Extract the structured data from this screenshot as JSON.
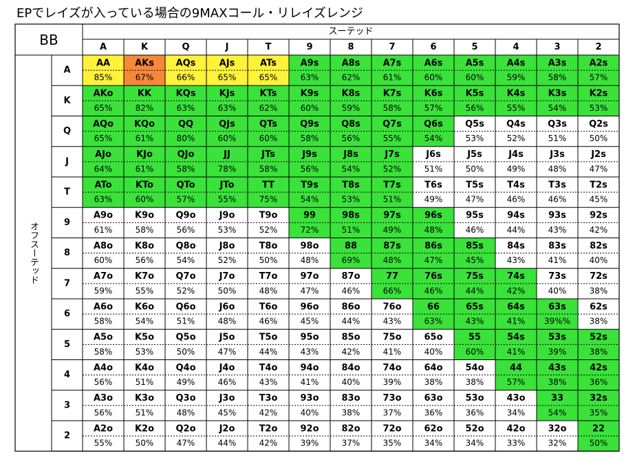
{
  "title": "EPでレイズが入っている場合の9MAXコール・リレイズレンジ",
  "corner_label": "BB",
  "column_group_label": "スーテッド",
  "row_group_label": "オフスーテッド",
  "columns": [
    "A",
    "K",
    "Q",
    "J",
    "T",
    "9",
    "8",
    "7",
    "6",
    "5",
    "4",
    "3",
    "2"
  ],
  "rows": [
    {
      "label": "A",
      "cells": [
        {
          "hand": "AA",
          "pct": "85%",
          "color": "#fff23a"
        },
        {
          "hand": "AKs",
          "pct": "67%",
          "color": "#f5883a"
        },
        {
          "hand": "AQs",
          "pct": "66%",
          "color": "#fff23a"
        },
        {
          "hand": "AJs",
          "pct": "65%",
          "color": "#fff23a"
        },
        {
          "hand": "ATs",
          "pct": "65%",
          "color": "#fff23a"
        },
        {
          "hand": "A9s",
          "pct": "63%",
          "color": "#3ae23a"
        },
        {
          "hand": "A8s",
          "pct": "62%",
          "color": "#3ae23a"
        },
        {
          "hand": "A7s",
          "pct": "61%",
          "color": "#3ae23a"
        },
        {
          "hand": "A6s",
          "pct": "60%",
          "color": "#3ae23a"
        },
        {
          "hand": "A5s",
          "pct": "60%",
          "color": "#3ae23a"
        },
        {
          "hand": "A4s",
          "pct": "59%",
          "color": "#3ae23a"
        },
        {
          "hand": "A3s",
          "pct": "58%",
          "color": "#3ae23a"
        },
        {
          "hand": "A2s",
          "pct": "57%",
          "color": "#3ae23a"
        }
      ]
    },
    {
      "label": "K",
      "cells": [
        {
          "hand": "AKo",
          "pct": "65%",
          "color": "#3ae23a"
        },
        {
          "hand": "KK",
          "pct": "82%",
          "color": "#3ae23a"
        },
        {
          "hand": "KQs",
          "pct": "63%",
          "color": "#3ae23a"
        },
        {
          "hand": "KJs",
          "pct": "63%",
          "color": "#3ae23a"
        },
        {
          "hand": "KTs",
          "pct": "62%",
          "color": "#3ae23a"
        },
        {
          "hand": "K9s",
          "pct": "60%",
          "color": "#3ae23a"
        },
        {
          "hand": "K8s",
          "pct": "59%",
          "color": "#3ae23a"
        },
        {
          "hand": "K7s",
          "pct": "58%",
          "color": "#3ae23a"
        },
        {
          "hand": "K6s",
          "pct": "57%",
          "color": "#3ae23a"
        },
        {
          "hand": "K5s",
          "pct": "56%",
          "color": "#3ae23a"
        },
        {
          "hand": "K4s",
          "pct": "55%",
          "color": "#3ae23a"
        },
        {
          "hand": "K3s",
          "pct": "54%",
          "color": "#3ae23a"
        },
        {
          "hand": "K2s",
          "pct": "53%",
          "color": "#3ae23a"
        }
      ]
    },
    {
      "label": "Q",
      "cells": [
        {
          "hand": "AQo",
          "pct": "65%",
          "color": "#3ae23a"
        },
        {
          "hand": "KQo",
          "pct": "61%",
          "color": "#3ae23a"
        },
        {
          "hand": "QQ",
          "pct": "80%",
          "color": "#3ae23a"
        },
        {
          "hand": "QJs",
          "pct": "60%",
          "color": "#3ae23a"
        },
        {
          "hand": "QTs",
          "pct": "60%",
          "color": "#3ae23a"
        },
        {
          "hand": "Q9s",
          "pct": "58%",
          "color": "#3ae23a"
        },
        {
          "hand": "Q8s",
          "pct": "56%",
          "color": "#3ae23a"
        },
        {
          "hand": "Q7s",
          "pct": "55%",
          "color": "#3ae23a"
        },
        {
          "hand": "Q6s",
          "pct": "54%",
          "color": "#3ae23a"
        },
        {
          "hand": "Q5s",
          "pct": "53%",
          "color": "#ffffff"
        },
        {
          "hand": "Q4s",
          "pct": "52%",
          "color": "#ffffff"
        },
        {
          "hand": "Q3s",
          "pct": "51%",
          "color": "#ffffff"
        },
        {
          "hand": "Q2s",
          "pct": "50%",
          "color": "#ffffff"
        }
      ]
    },
    {
      "label": "J",
      "cells": [
        {
          "hand": "AJo",
          "pct": "64%",
          "color": "#3ae23a"
        },
        {
          "hand": "KJo",
          "pct": "61%",
          "color": "#3ae23a"
        },
        {
          "hand": "QJo",
          "pct": "58%",
          "color": "#3ae23a"
        },
        {
          "hand": "JJ",
          "pct": "78%",
          "color": "#3ae23a"
        },
        {
          "hand": "JTs",
          "pct": "58%",
          "color": "#3ae23a"
        },
        {
          "hand": "J9s",
          "pct": "56%",
          "color": "#3ae23a"
        },
        {
          "hand": "J8s",
          "pct": "54%",
          "color": "#3ae23a"
        },
        {
          "hand": "J7s",
          "pct": "52%",
          "color": "#3ae23a"
        },
        {
          "hand": "J6s",
          "pct": "51%",
          "color": "#ffffff"
        },
        {
          "hand": "J5s",
          "pct": "50%",
          "color": "#ffffff"
        },
        {
          "hand": "J4s",
          "pct": "49%",
          "color": "#ffffff"
        },
        {
          "hand": "J3s",
          "pct": "48%",
          "color": "#ffffff"
        },
        {
          "hand": "J2s",
          "pct": "47%",
          "color": "#ffffff"
        }
      ]
    },
    {
      "label": "T",
      "cells": [
        {
          "hand": "ATo",
          "pct": "63%",
          "color": "#3ae23a"
        },
        {
          "hand": "KTo",
          "pct": "60%",
          "color": "#3ae23a"
        },
        {
          "hand": "QTo",
          "pct": "57%",
          "color": "#3ae23a"
        },
        {
          "hand": "JTo",
          "pct": "55%",
          "color": "#3ae23a"
        },
        {
          "hand": "TT",
          "pct": "75%",
          "color": "#3ae23a"
        },
        {
          "hand": "T9s",
          "pct": "54%",
          "color": "#3ae23a"
        },
        {
          "hand": "T8s",
          "pct": "53%",
          "color": "#3ae23a"
        },
        {
          "hand": "T7s",
          "pct": "51%",
          "color": "#3ae23a"
        },
        {
          "hand": "T6s",
          "pct": "49%",
          "color": "#ffffff"
        },
        {
          "hand": "T5s",
          "pct": "47%",
          "color": "#ffffff"
        },
        {
          "hand": "T4s",
          "pct": "46%",
          "color": "#ffffff"
        },
        {
          "hand": "T3s",
          "pct": "46%",
          "color": "#ffffff"
        },
        {
          "hand": "T2s",
          "pct": "45%",
          "color": "#ffffff"
        }
      ]
    },
    {
      "label": "9",
      "cells": [
        {
          "hand": "A9o",
          "pct": "61%",
          "color": "#ffffff"
        },
        {
          "hand": "K9o",
          "pct": "58%",
          "color": "#ffffff"
        },
        {
          "hand": "Q9o",
          "pct": "56%",
          "color": "#ffffff"
        },
        {
          "hand": "J9o",
          "pct": "53%",
          "color": "#ffffff"
        },
        {
          "hand": "T9o",
          "pct": "52%",
          "color": "#ffffff"
        },
        {
          "hand": "99",
          "pct": "72%",
          "color": "#3ae23a"
        },
        {
          "hand": "98s",
          "pct": "51%",
          "color": "#3ae23a"
        },
        {
          "hand": "97s",
          "pct": "49%",
          "color": "#3ae23a"
        },
        {
          "hand": "96s",
          "pct": "48%",
          "color": "#3ae23a"
        },
        {
          "hand": "95s",
          "pct": "46%",
          "color": "#ffffff"
        },
        {
          "hand": "94s",
          "pct": "44%",
          "color": "#ffffff"
        },
        {
          "hand": "93s",
          "pct": "43%",
          "color": "#ffffff"
        },
        {
          "hand": "92s",
          "pct": "42%",
          "color": "#ffffff"
        }
      ]
    },
    {
      "label": "8",
      "cells": [
        {
          "hand": "A8o",
          "pct": "60%",
          "color": "#ffffff"
        },
        {
          "hand": "K8o",
          "pct": "56%",
          "color": "#ffffff"
        },
        {
          "hand": "Q8o",
          "pct": "54%",
          "color": "#ffffff"
        },
        {
          "hand": "J8o",
          "pct": "52%",
          "color": "#ffffff"
        },
        {
          "hand": "T8o",
          "pct": "50%",
          "color": "#ffffff"
        },
        {
          "hand": "98o",
          "pct": "48%",
          "color": "#ffffff"
        },
        {
          "hand": "88",
          "pct": "69%",
          "color": "#3ae23a"
        },
        {
          "hand": "87s",
          "pct": "48%",
          "color": "#3ae23a"
        },
        {
          "hand": "86s",
          "pct": "47%",
          "color": "#3ae23a"
        },
        {
          "hand": "85s",
          "pct": "45%",
          "color": "#3ae23a"
        },
        {
          "hand": "84s",
          "pct": "43%",
          "color": "#ffffff"
        },
        {
          "hand": "83s",
          "pct": "41%",
          "color": "#ffffff"
        },
        {
          "hand": "82s",
          "pct": "40%",
          "color": "#ffffff"
        }
      ]
    },
    {
      "label": "7",
      "cells": [
        {
          "hand": "A7o",
          "pct": "59%",
          "color": "#ffffff"
        },
        {
          "hand": "K7o",
          "pct": "55%",
          "color": "#ffffff"
        },
        {
          "hand": "Q7o",
          "pct": "52%",
          "color": "#ffffff"
        },
        {
          "hand": "J7o",
          "pct": "50%",
          "color": "#ffffff"
        },
        {
          "hand": "T7o",
          "pct": "48%",
          "color": "#ffffff"
        },
        {
          "hand": "97o",
          "pct": "47%",
          "color": "#ffffff"
        },
        {
          "hand": "87o",
          "pct": "46%",
          "color": "#ffffff"
        },
        {
          "hand": "77",
          "pct": "66%",
          "color": "#3ae23a"
        },
        {
          "hand": "76s",
          "pct": "46%",
          "color": "#3ae23a"
        },
        {
          "hand": "75s",
          "pct": "44%",
          "color": "#3ae23a"
        },
        {
          "hand": "74s",
          "pct": "42%",
          "color": "#3ae23a"
        },
        {
          "hand": "73s",
          "pct": "40%",
          "color": "#ffffff"
        },
        {
          "hand": "72s",
          "pct": "38%",
          "color": "#ffffff"
        }
      ]
    },
    {
      "label": "6",
      "cells": [
        {
          "hand": "A6o",
          "pct": "58%",
          "color": "#ffffff"
        },
        {
          "hand": "K6o",
          "pct": "54%",
          "color": "#ffffff"
        },
        {
          "hand": "Q6o",
          "pct": "51%",
          "color": "#ffffff"
        },
        {
          "hand": "J6o",
          "pct": "48%",
          "color": "#ffffff"
        },
        {
          "hand": "T6o",
          "pct": "46%",
          "color": "#ffffff"
        },
        {
          "hand": "96o",
          "pct": "45%",
          "color": "#ffffff"
        },
        {
          "hand": "86o",
          "pct": "44%",
          "color": "#ffffff"
        },
        {
          "hand": "76o",
          "pct": "43%",
          "color": "#ffffff"
        },
        {
          "hand": "66",
          "pct": "63%",
          "color": "#3ae23a"
        },
        {
          "hand": "65s",
          "pct": "43%",
          "color": "#3ae23a"
        },
        {
          "hand": "64s",
          "pct": "41%",
          "color": "#3ae23a"
        },
        {
          "hand": "63s",
          "pct": "39%%",
          "color": "#3ae23a"
        },
        {
          "hand": "62s",
          "pct": "38%",
          "color": "#ffffff"
        }
      ]
    },
    {
      "label": "5",
      "cells": [
        {
          "hand": "A5o",
          "pct": "58%",
          "color": "#ffffff"
        },
        {
          "hand": "K5o",
          "pct": "53%",
          "color": "#ffffff"
        },
        {
          "hand": "Q5o",
          "pct": "50%",
          "color": "#ffffff"
        },
        {
          "hand": "J5o",
          "pct": "47%",
          "color": "#ffffff"
        },
        {
          "hand": "T5o",
          "pct": "44%",
          "color": "#ffffff"
        },
        {
          "hand": "95o",
          "pct": "43%",
          "color": "#ffffff"
        },
        {
          "hand": "85o",
          "pct": "42%",
          "color": "#ffffff"
        },
        {
          "hand": "75o",
          "pct": "41%",
          "color": "#ffffff"
        },
        {
          "hand": "65o",
          "pct": "40%",
          "color": "#ffffff"
        },
        {
          "hand": "55",
          "pct": "60%",
          "color": "#3ae23a"
        },
        {
          "hand": "54s",
          "pct": "41%",
          "color": "#3ae23a"
        },
        {
          "hand": "53s",
          "pct": "39%",
          "color": "#3ae23a"
        },
        {
          "hand": "52s",
          "pct": "38%",
          "color": "#3ae23a"
        }
      ]
    },
    {
      "label": "4",
      "cells": [
        {
          "hand": "A4o",
          "pct": "56%",
          "color": "#ffffff"
        },
        {
          "hand": "K4o",
          "pct": "51%",
          "color": "#ffffff"
        },
        {
          "hand": "Q4o",
          "pct": "49%",
          "color": "#ffffff"
        },
        {
          "hand": "J4o",
          "pct": "46%",
          "color": "#ffffff"
        },
        {
          "hand": "T4o",
          "pct": "43%",
          "color": "#ffffff"
        },
        {
          "hand": "94o",
          "pct": "41%",
          "color": "#ffffff"
        },
        {
          "hand": "84o",
          "pct": "40%",
          "color": "#ffffff"
        },
        {
          "hand": "74o",
          "pct": "39%",
          "color": "#ffffff"
        },
        {
          "hand": "64o",
          "pct": "38%",
          "color": "#ffffff"
        },
        {
          "hand": "54o",
          "pct": "38%",
          "color": "#ffffff"
        },
        {
          "hand": "44",
          "pct": "57%",
          "color": "#3ae23a"
        },
        {
          "hand": "43s",
          "pct": "38%",
          "color": "#3ae23a"
        },
        {
          "hand": "42s",
          "pct": "36%",
          "color": "#3ae23a"
        }
      ]
    },
    {
      "label": "3",
      "cells": [
        {
          "hand": "A3o",
          "pct": "56%",
          "color": "#ffffff"
        },
        {
          "hand": "K3o",
          "pct": "51%",
          "color": "#ffffff"
        },
        {
          "hand": "Q3o",
          "pct": "48%",
          "color": "#ffffff"
        },
        {
          "hand": "J3o",
          "pct": "45%",
          "color": "#ffffff"
        },
        {
          "hand": "T3o",
          "pct": "42%",
          "color": "#ffffff"
        },
        {
          "hand": "93o",
          "pct": "40%",
          "color": "#ffffff"
        },
        {
          "hand": "83o",
          "pct": "38%",
          "color": "#ffffff"
        },
        {
          "hand": "73o",
          "pct": "37%",
          "color": "#ffffff"
        },
        {
          "hand": "63o",
          "pct": "36%",
          "color": "#ffffff"
        },
        {
          "hand": "53o",
          "pct": "36%",
          "color": "#ffffff"
        },
        {
          "hand": "43o",
          "pct": "34%",
          "color": "#ffffff"
        },
        {
          "hand": "33",
          "pct": "54%",
          "color": "#3ae23a"
        },
        {
          "hand": "32s",
          "pct": "35%",
          "color": "#3ae23a"
        }
      ]
    },
    {
      "label": "2",
      "cells": [
        {
          "hand": "A2o",
          "pct": "55%",
          "color": "#ffffff"
        },
        {
          "hand": "K2o",
          "pct": "50%",
          "color": "#ffffff"
        },
        {
          "hand": "Q2o",
          "pct": "47%",
          "color": "#ffffff"
        },
        {
          "hand": "J2o",
          "pct": "44%",
          "color": "#ffffff"
        },
        {
          "hand": "T2o",
          "pct": "42%",
          "color": "#ffffff"
        },
        {
          "hand": "92o",
          "pct": "39%",
          "color": "#ffffff"
        },
        {
          "hand": "82o",
          "pct": "37%",
          "color": "#ffffff"
        },
        {
          "hand": "72o",
          "pct": "35%",
          "color": "#ffffff"
        },
        {
          "hand": "62o",
          "pct": "34%",
          "color": "#ffffff"
        },
        {
          "hand": "52o",
          "pct": "34%",
          "color": "#ffffff"
        },
        {
          "hand": "42o",
          "pct": "33%",
          "color": "#ffffff"
        },
        {
          "hand": "32o",
          "pct": "32%",
          "color": "#ffffff"
        },
        {
          "hand": "22",
          "pct": "50%",
          "color": "#3ae23a"
        }
      ]
    }
  ]
}
